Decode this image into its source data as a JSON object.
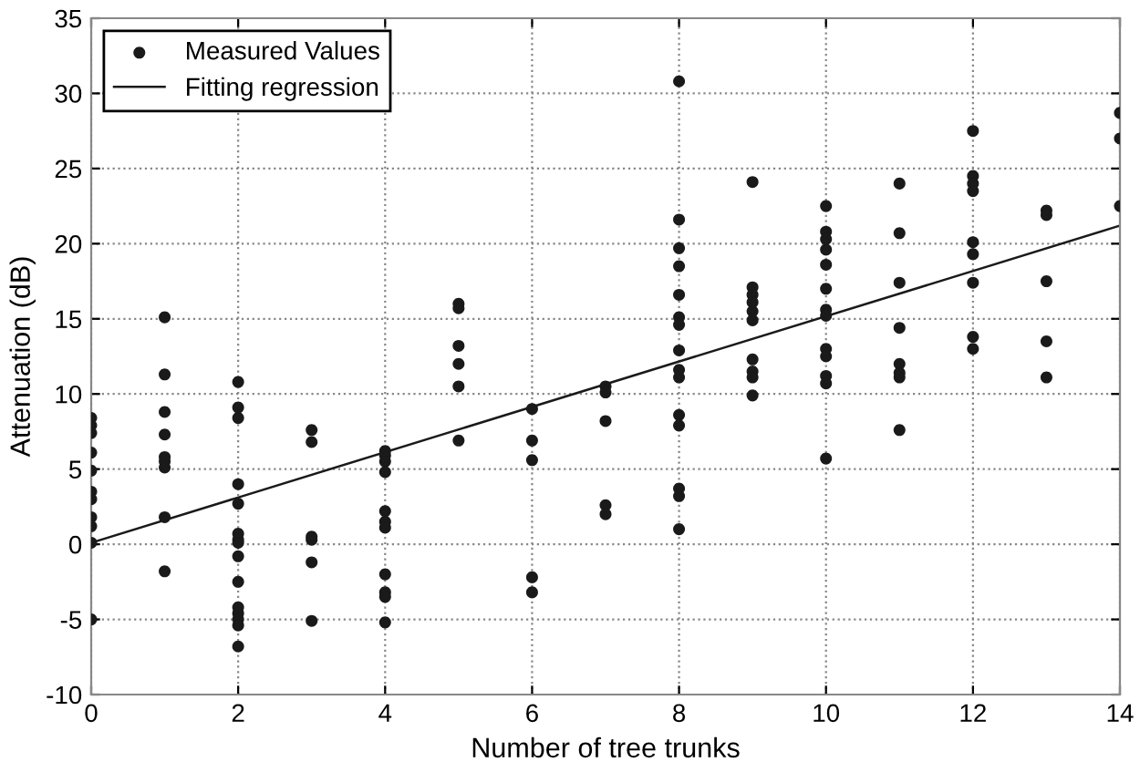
{
  "chart_data": {
    "type": "scatter",
    "xlabel": "Number of tree trunks",
    "ylabel": "Attenuation (dB)",
    "xlim": [
      0,
      14
    ],
    "xticks": [
      0,
      2,
      4,
      6,
      8,
      10,
      12,
      14
    ],
    "ylim": [
      -10,
      35
    ],
    "yticks": [
      -10,
      -5,
      0,
      5,
      10,
      15,
      20,
      25,
      30,
      35
    ],
    "grid": true,
    "legend": "top left",
    "series": [
      {
        "name": "Measured Values",
        "color": "#1a1a1a",
        "marker": "circle",
        "x": [
          0,
          0,
          0,
          0,
          0,
          0,
          0,
          0,
          0,
          0,
          0,
          1,
          1,
          1,
          1,
          1,
          1,
          1,
          1,
          1,
          2,
          2,
          2,
          2,
          2,
          2,
          2,
          2,
          2,
          2,
          2,
          2,
          2,
          2,
          2,
          3,
          3,
          3,
          3,
          3,
          3,
          4,
          4,
          4,
          4,
          4,
          4,
          4,
          4,
          4,
          4,
          4,
          5,
          5,
          5,
          5,
          5,
          5,
          6,
          6,
          6,
          6,
          6,
          7,
          7,
          7,
          7,
          7,
          8,
          8,
          8,
          8,
          8,
          8,
          8,
          8,
          8,
          8,
          8,
          8,
          8,
          8,
          8,
          9,
          9,
          9,
          9,
          9,
          9,
          9,
          9,
          9,
          9,
          10,
          10,
          10,
          10,
          10,
          10,
          10,
          10,
          10,
          10,
          10,
          10,
          10,
          11,
          11,
          11,
          11,
          11,
          11,
          11,
          11,
          12,
          12,
          12,
          12,
          12,
          12,
          12,
          12,
          12,
          13,
          13,
          13,
          13,
          13,
          14,
          14,
          14
        ],
        "values": [
          8.4,
          7.9,
          7.4,
          6.1,
          4.9,
          3.5,
          3.0,
          1.8,
          1.2,
          0.1,
          -5.0,
          15.1,
          11.3,
          8.8,
          7.3,
          5.8,
          5.5,
          5.1,
          1.8,
          -1.8,
          10.8,
          9.1,
          8.4,
          4.0,
          2.7,
          0.7,
          0.3,
          0.1,
          -0.8,
          -2.5,
          -4.2,
          -4.6,
          -5.0,
          -5.4,
          -6.8,
          7.6,
          6.8,
          0.5,
          0.3,
          -1.2,
          -5.1,
          6.2,
          5.9,
          5.5,
          4.8,
          2.2,
          1.5,
          1.1,
          -2.0,
          -3.2,
          -3.5,
          -5.2,
          16.0,
          15.7,
          13.2,
          12.0,
          10.5,
          6.9,
          9.0,
          6.9,
          5.6,
          -2.2,
          -3.2,
          10.5,
          10.1,
          8.2,
          2.6,
          2.0,
          30.8,
          21.6,
          19.7,
          18.5,
          16.6,
          15.1,
          14.6,
          12.9,
          11.6,
          11.1,
          8.6,
          7.9,
          3.7,
          3.2,
          1.0,
          24.1,
          17.1,
          16.6,
          16.1,
          15.5,
          14.9,
          12.3,
          11.5,
          11.1,
          9.9,
          22.5,
          20.8,
          20.3,
          19.6,
          18.6,
          17.0,
          15.6,
          15.2,
          13.0,
          12.5,
          11.2,
          10.7,
          5.7,
          24.0,
          20.7,
          17.4,
          14.4,
          12.0,
          11.4,
          11.1,
          7.6,
          27.5,
          24.5,
          24.0,
          23.5,
          20.1,
          19.3,
          17.4,
          13.8,
          13.0,
          22.2,
          21.9,
          17.5,
          13.5,
          11.1,
          28.7,
          27.0,
          22.5
        ]
      },
      {
        "name": "Fitting regression",
        "type": "line",
        "color": "#1a1a1a",
        "line_style": "solid",
        "marker": "none",
        "x": [
          0,
          14
        ],
        "values": [
          0.1,
          21.2
        ]
      }
    ]
  }
}
